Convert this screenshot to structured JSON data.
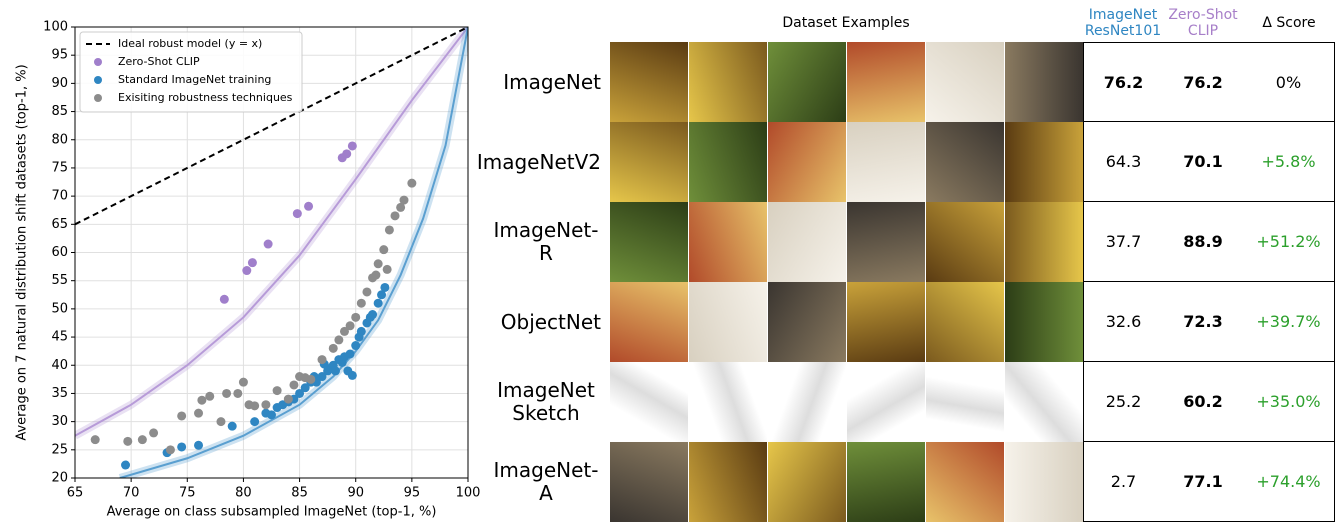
{
  "chart_data": {
    "type": "scatter",
    "x_label": "Average on class subsampled ImageNet (top-1, %)",
    "y_label": "Average on 7 natural distribution shift datasets (top-1, %)",
    "xlim": [
      65,
      100
    ],
    "ylim": [
      20,
      100
    ],
    "xticks": [
      65,
      70,
      75,
      80,
      85,
      90,
      95,
      100
    ],
    "yticks": [
      20,
      25,
      30,
      35,
      40,
      45,
      50,
      55,
      60,
      65,
      70,
      75,
      80,
      85,
      90,
      95,
      100
    ],
    "grid": true,
    "legend": "upper-left",
    "series": [
      {
        "name": "Ideal robust model (y = x)",
        "type": "line",
        "dashed": true,
        "color": "#000000",
        "x": [
          65,
          100
        ],
        "values": [
          65,
          100
        ]
      },
      {
        "name": "Zero-Shot CLIP",
        "type": "scatter",
        "color": "#a07fcb",
        "x": [
          78.3,
          80.3,
          80.8,
          82.2,
          84.8,
          85.8,
          88.8,
          89.2,
          89.7
        ],
        "values": [
          51.7,
          56.8,
          58.2,
          61.5,
          66.9,
          68.2,
          76.8,
          77.5,
          78.9
        ]
      },
      {
        "name": "Standard ImageNet training",
        "type": "scatter",
        "color": "#2f86c2",
        "x": [
          69.5,
          73.2,
          74.5,
          76,
          79,
          81,
          82,
          82.5,
          83,
          83.5,
          84,
          84.5,
          85,
          85.5,
          86,
          86.3,
          86.5,
          87,
          87.5,
          87.8,
          88,
          88.2,
          88.5,
          88.8,
          89,
          89.3,
          89.5,
          90,
          90.3,
          90.5,
          91,
          91.3,
          91.5,
          92,
          92.3,
          92.6,
          89.7,
          87.2
        ],
        "values": [
          22.3,
          24.5,
          25.5,
          25.8,
          29.2,
          30,
          31.5,
          31.2,
          32.5,
          33,
          33.5,
          34,
          35,
          36,
          37,
          38,
          37,
          38,
          39,
          39.5,
          40,
          39,
          41,
          40.5,
          41.5,
          39,
          42,
          43.5,
          45,
          46,
          47.5,
          48.5,
          49,
          51,
          52.5,
          53.8,
          38.2,
          40.2
        ]
      },
      {
        "name": "Exisiting robustness techniques",
        "type": "scatter",
        "color": "#8c8c8c",
        "x": [
          66.8,
          69.7,
          71,
          72,
          73.5,
          74.5,
          76,
          76.3,
          77,
          78,
          78.5,
          79.5,
          80,
          80.5,
          81,
          82,
          83,
          84,
          84.5,
          85,
          85.5,
          86,
          87,
          88,
          88.5,
          89,
          89.5,
          90,
          90.5,
          91,
          91.5,
          92,
          92.5,
          93,
          93.5,
          94,
          94.3,
          95,
          92.8,
          91.8
        ],
        "values": [
          26.8,
          26.5,
          26.8,
          28,
          25,
          31,
          31.5,
          33.8,
          34.5,
          30,
          35,
          35,
          37,
          33,
          32.8,
          33,
          35.5,
          34,
          36.5,
          38,
          37.8,
          37.5,
          41,
          43,
          44.5,
          46,
          47,
          48.5,
          51,
          53,
          55.5,
          58,
          60.5,
          64,
          66.5,
          68,
          69.3,
          72.3,
          57,
          56
        ]
      }
    ],
    "fit_curves": [
      {
        "color": "#b79bd8",
        "x": [
          65,
          70,
          75,
          80,
          85,
          90,
          95,
          100
        ],
        "values": [
          27.5,
          33,
          40,
          48.5,
          59.5,
          73,
          87,
          100
        ]
      },
      {
        "color": "#5a9fd0",
        "x": [
          69,
          75,
          80,
          85,
          88,
          90,
          92,
          94,
          96,
          98,
          100
        ],
        "values": [
          20,
          23.5,
          27.5,
          33,
          38,
          42.5,
          48,
          56,
          66,
          79,
          100
        ]
      }
    ]
  },
  "table": {
    "headers": [
      "Dataset Examples",
      "ImageNet ResNet101",
      "Zero-Shot CLIP",
      "Δ Score"
    ],
    "rows": [
      [
        "ImageNet",
        "76.2",
        "76.2",
        "0%"
      ],
      [
        "ImageNetV2",
        "64.3",
        "70.1",
        "+5.8%"
      ],
      [
        "ImageNet-R",
        "37.7",
        "88.9",
        "+51.2%"
      ],
      [
        "ObjectNet",
        "32.6",
        "72.3",
        "+39.7%"
      ],
      [
        "ImageNet Sketch",
        "25.2",
        "60.2",
        "+35.0%"
      ],
      [
        "ImageNet-A",
        "2.7",
        "77.1",
        "+74.4%"
      ]
    ]
  }
}
